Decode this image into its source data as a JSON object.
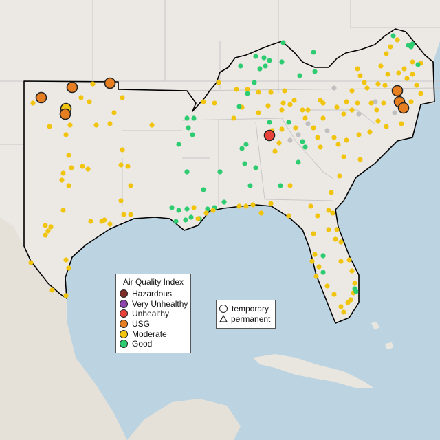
{
  "legend": {
    "title": "Air Quality Index",
    "categories": [
      {
        "label": "Hazardous",
        "color": "#7e2e27"
      },
      {
        "label": "Very Unhealthy",
        "color": "#8e44ad"
      },
      {
        "label": "Unhealthy",
        "color": "#e8433a"
      },
      {
        "label": "USG",
        "color": "#e67e22"
      },
      {
        "label": "Moderate",
        "color": "#f1c40f"
      },
      {
        "label": "Good",
        "color": "#2ecc71"
      }
    ]
  },
  "type_legend": {
    "temporary": "temporary",
    "permanent": "permanent"
  },
  "map_colors": {
    "water": "#bcd3e2",
    "land": "#ece9e4",
    "border": "#c8c8c8",
    "region_outline": "#000000",
    "inactive_marker": "#c0c0c0"
  }
}
